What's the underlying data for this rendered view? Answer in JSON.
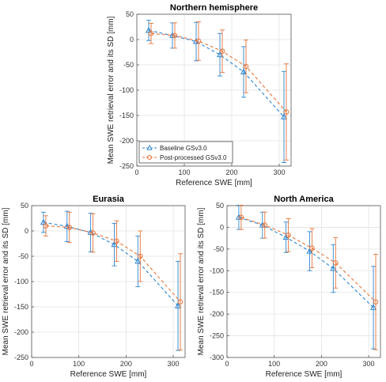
{
  "chart_data": [
    {
      "type": "line",
      "title": "Northern hemisphere",
      "xlabel": "Reference SWE [mm]",
      "ylabel": "Mean SWE retrieval error and its SD [mm]",
      "xlim": [
        0,
        325
      ],
      "ylim": [
        -250,
        50
      ],
      "xticks": [
        0,
        100,
        200,
        300
      ],
      "yticks": [
        -250,
        -200,
        -150,
        -100,
        -50,
        0,
        50
      ],
      "grid": true,
      "legend": "bottom-left",
      "series": [
        {
          "name": "Baseline GSv3.0",
          "color": "#2e86d1",
          "marker": "triangle",
          "x": [
            25,
            75,
            125,
            175,
            225,
            310
          ],
          "y": [
            18,
            8,
            -4,
            -30,
            -64,
            -153
          ],
          "sd": [
            20,
            25,
            38,
            42,
            50,
            90
          ]
        },
        {
          "name": "Post-processed GSv3.0",
          "color": "#e8743b",
          "marker": "circle",
          "x": [
            30,
            80,
            130,
            180,
            230,
            315
          ],
          "y": [
            12,
            8,
            -3,
            -23,
            -53,
            -143
          ],
          "sd": [
            20,
            25,
            38,
            42,
            52,
            95
          ]
        }
      ]
    },
    {
      "type": "line",
      "title": "Eurasia",
      "xlabel": "Reference SWE [mm]",
      "ylabel": "Mean SWE retrieval error and its SD [mm]",
      "xlim": [
        0,
        325
      ],
      "ylim": [
        -250,
        50
      ],
      "xticks": [
        0,
        100,
        200,
        300
      ],
      "yticks": [
        -250,
        -200,
        -150,
        -100,
        -50,
        0,
        50
      ],
      "grid": true,
      "series": [
        {
          "name": "Baseline GSv3.0",
          "color": "#2e86d1",
          "marker": "triangle",
          "x": [
            25,
            75,
            125,
            175,
            225,
            310
          ],
          "y": [
            17,
            9,
            -3,
            -27,
            -60,
            -148
          ],
          "sd": [
            20,
            30,
            38,
            42,
            50,
            88
          ]
        },
        {
          "name": "Post-processed GSv3.0",
          "color": "#e8743b",
          "marker": "circle",
          "x": [
            30,
            80,
            130,
            180,
            230,
            315
          ],
          "y": [
            10,
            7,
            -4,
            -20,
            -50,
            -140
          ],
          "sd": [
            20,
            30,
            38,
            40,
            50,
            95
          ]
        }
      ]
    },
    {
      "type": "line",
      "title": "North America",
      "xlabel": "Reference SWE [mm]",
      "ylabel": "Mean SWE retrieval error and its SD [mm]",
      "xlim": [
        0,
        325
      ],
      "ylim": [
        -300,
        50
      ],
      "xticks": [
        0,
        100,
        200,
        300
      ],
      "yticks": [
        -300,
        -250,
        -200,
        -150,
        -100,
        -50,
        0,
        50
      ],
      "grid": true,
      "series": [
        {
          "name": "Baseline GSv3.0",
          "color": "#2e86d1",
          "marker": "triangle",
          "x": [
            25,
            75,
            125,
            175,
            225,
            310
          ],
          "y": [
            23,
            5,
            -23,
            -55,
            -95,
            -185
          ],
          "sd": [
            28,
            30,
            35,
            45,
            55,
            95
          ]
        },
        {
          "name": "Post-processed GSv3.0",
          "color": "#e8743b",
          "marker": "circle",
          "x": [
            30,
            80,
            130,
            180,
            230,
            315
          ],
          "y": [
            23,
            5,
            -18,
            -48,
            -82,
            -172
          ],
          "sd": [
            28,
            30,
            38,
            45,
            58,
            110
          ]
        }
      ]
    }
  ]
}
